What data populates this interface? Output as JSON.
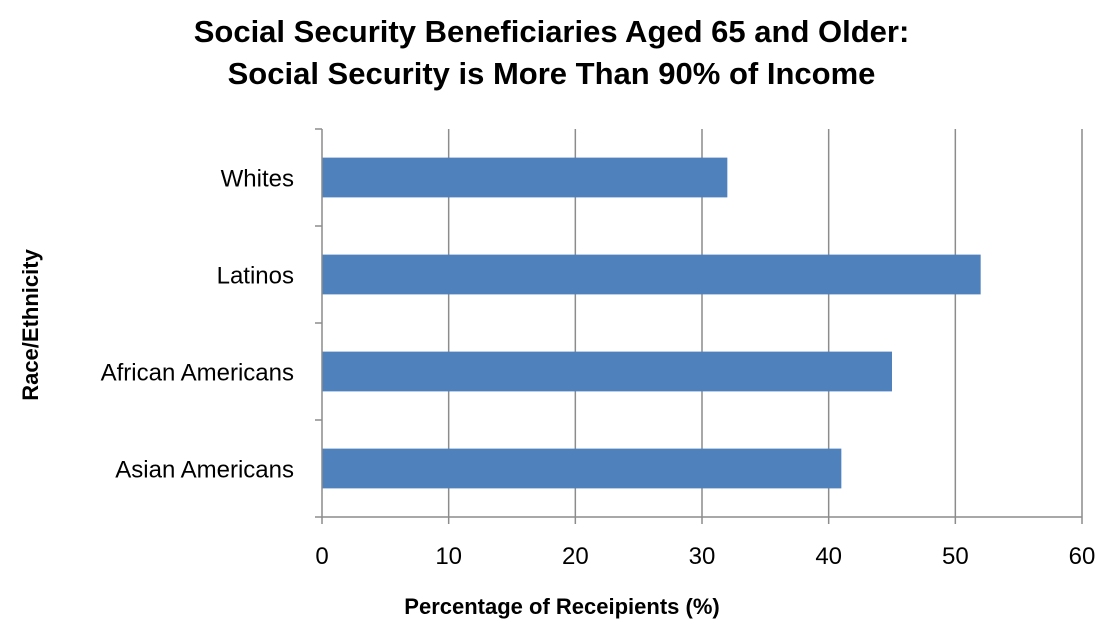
{
  "chart_data": {
    "type": "bar",
    "orientation": "horizontal",
    "title_lines": [
      "Social Security Beneficiaries Aged 65 and Older:",
      "Social Security is More Than 90% of Income"
    ],
    "xlabel": "Percentage of Receipients (%)",
    "ylabel": "Race/Ethnicity",
    "categories": [
      "Whites",
      "Latinos",
      "African Americans",
      "Asian Americans"
    ],
    "values": [
      32,
      52,
      45,
      41
    ],
    "xlim": [
      0,
      60
    ],
    "x_ticks": [
      0,
      10,
      20,
      30,
      40,
      50,
      60
    ],
    "grid": "vertical",
    "legend": "none",
    "bar_color": "#4F81BD",
    "grid_color": "#8C8C8C"
  }
}
